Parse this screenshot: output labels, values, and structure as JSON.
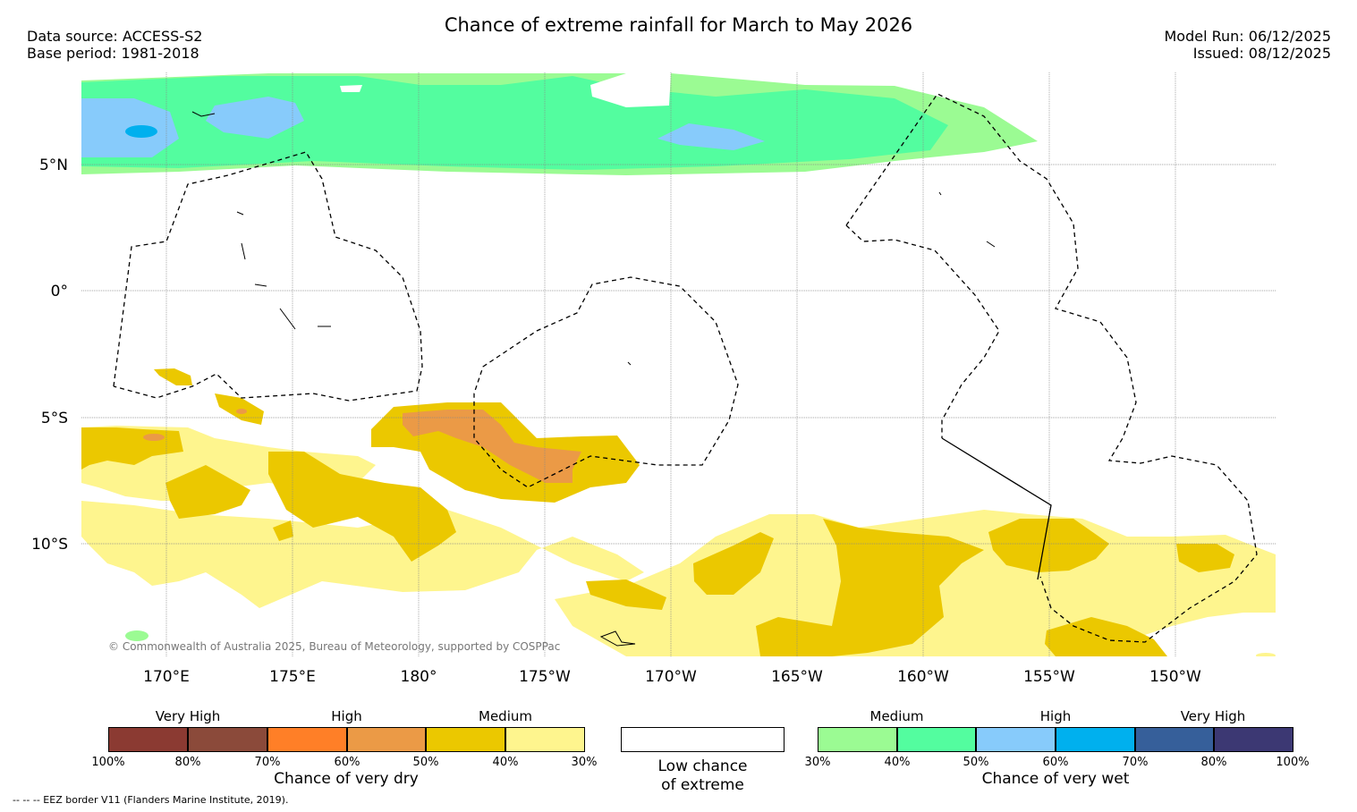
{
  "title": "Chance of extreme rainfall for March to May 2026",
  "data_source": "Data source: ACCESS-S2",
  "base_period": "Base period: 1981-2018",
  "model_run": "Model Run: 06/12/2025",
  "issued": "Issued: 08/12/2025",
  "map": {
    "lat_labels": [
      "5°N",
      "0°",
      "5°S",
      "10°S"
    ],
    "lon_labels": [
      "170°E",
      "175°E",
      "180°",
      "175°W",
      "170°W",
      "165°W",
      "160°W",
      "155°W",
      "150°W"
    ],
    "copyright": "© Commonwealth of Australia 2025, Bureau of Meteorology, supported by COSPPac"
  },
  "legend": {
    "dry": {
      "headings": [
        "Very High",
        "High",
        "Medium"
      ],
      "colors": [
        "#8b3a32",
        "#8b4a3a",
        "#ff7f27",
        "#eb9a46",
        "#ebc800",
        "#fef58e"
      ],
      "ticks": [
        "100%",
        "80%",
        "70%",
        "60%",
        "50%",
        "40%",
        "30%"
      ],
      "caption": "Chance of very dry"
    },
    "neutral": {
      "color": "#ffffff",
      "caption_line1": "Low chance",
      "caption_line2": "of extreme"
    },
    "wet": {
      "headings": [
        "Medium",
        "High",
        "Very High"
      ],
      "colors": [
        "#9bfb93",
        "#53fd9f",
        "#87cbfb",
        "#00b0ee",
        "#365f9a",
        "#3c3873"
      ],
      "ticks": [
        "30%",
        "40%",
        "50%",
        "60%",
        "70%",
        "80%",
        "100%"
      ],
      "caption": "Chance of very wet"
    }
  },
  "footnote": "-- -- -- EEZ border V11 (Flanders Marine Institute, 2019)."
}
